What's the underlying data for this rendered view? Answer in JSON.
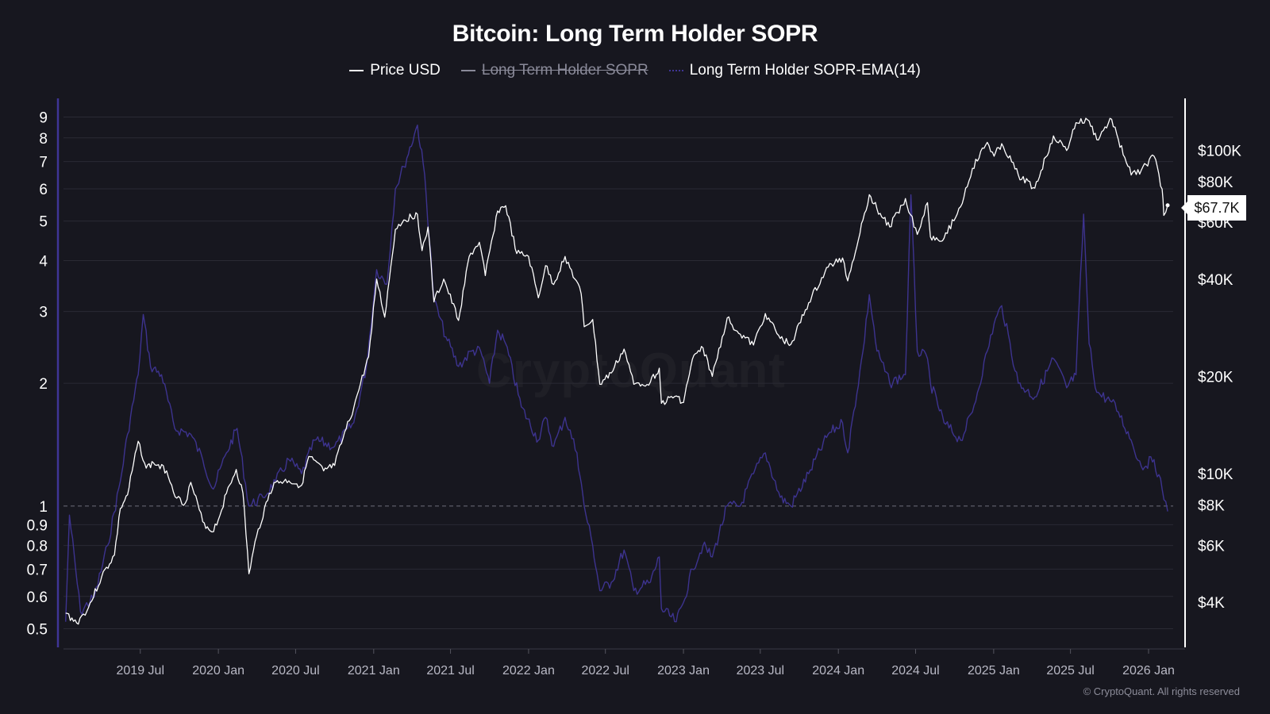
{
  "chart_data": {
    "type": "line",
    "title": "Bitcoin: Long Term Holder SOPR",
    "legend": {
      "placement": "top-center",
      "entries": [
        {
          "name": "Price USD",
          "enabled": true,
          "color": "#ffffff"
        },
        {
          "name": "Long Term Holder SOPR",
          "enabled": false,
          "color": "#ffffff"
        },
        {
          "name": "Long Term Holder SOPR-EMA(14)",
          "enabled": true,
          "color": "#3f3596"
        }
      ]
    },
    "x_axis": {
      "type": "date",
      "range": [
        "2019-01-01",
        "2026-02-28"
      ],
      "tick_labels": [
        "2019 Jul",
        "2020 Jan",
        "2020 Jul",
        "2021 Jan",
        "2021 Jul",
        "2022 Jan",
        "2022 Jul",
        "2023 Jan",
        "2023 Jul",
        "2024 Jan",
        "2024 Jul",
        "2025 Jan",
        "2025 Jul",
        "2026 Jan"
      ],
      "tick_dates": [
        "2019-07-01",
        "2020-01-01",
        "2020-07-01",
        "2021-01-01",
        "2021-07-01",
        "2022-01-01",
        "2022-07-01",
        "2023-01-01",
        "2023-07-01",
        "2024-01-01",
        "2024-07-01",
        "2025-01-01",
        "2025-07-01",
        "2026-01-01"
      ]
    },
    "y_left": {
      "scale": "log",
      "range": [
        0.45,
        10.0
      ],
      "tick_labels": [
        "0.5",
        "0.6",
        "0.7",
        "0.8",
        "0.9",
        "1",
        "2",
        "3",
        "4",
        "5",
        "6",
        "7",
        "8",
        "9"
      ],
      "tick_values": [
        0.5,
        0.6,
        0.7,
        0.8,
        0.9,
        1,
        2,
        3,
        4,
        5,
        6,
        7,
        8,
        9
      ],
      "reference_line": 1
    },
    "y_right": {
      "scale": "log",
      "range": [
        2900,
        145000
      ],
      "tick_labels": [
        "$4K",
        "$6K",
        "$8K",
        "$10K",
        "$20K",
        "$40K",
        "$60K",
        "$80K",
        "$100K"
      ],
      "tick_values": [
        4000,
        6000,
        8000,
        10000,
        20000,
        40000,
        60000,
        80000,
        100000
      ],
      "current_value_label": "$67.7K"
    },
    "grid": true,
    "series": [
      {
        "name": "Price USD",
        "axis": "right",
        "points": [
          [
            "2019-01-06",
            3700
          ],
          [
            "2019-02-01",
            3450
          ],
          [
            "2019-03-01",
            3850
          ],
          [
            "2019-04-01",
            4800
          ],
          [
            "2019-05-01",
            5600
          ],
          [
            "2019-05-15",
            7800
          ],
          [
            "2019-06-01",
            8600
          ],
          [
            "2019-06-26",
            12600
          ],
          [
            "2019-07-15",
            10400
          ],
          [
            "2019-08-01",
            10800
          ],
          [
            "2019-09-01",
            10200
          ],
          [
            "2019-09-25",
            8400
          ],
          [
            "2019-10-15",
            8100
          ],
          [
            "2019-10-28",
            9400
          ],
          [
            "2019-11-25",
            7100
          ],
          [
            "2019-12-17",
            6600
          ],
          [
            "2020-01-01",
            7200
          ],
          [
            "2020-01-20",
            8700
          ],
          [
            "2020-02-12",
            10300
          ],
          [
            "2020-02-28",
            8700
          ],
          [
            "2020-03-13",
            4900
          ],
          [
            "2020-03-31",
            6400
          ],
          [
            "2020-04-30",
            8700
          ],
          [
            "2020-05-15",
            9400
          ],
          [
            "2020-06-15",
            9500
          ],
          [
            "2020-07-15",
            9200
          ],
          [
            "2020-08-01",
            11300
          ],
          [
            "2020-09-05",
            10200
          ],
          [
            "2020-10-01",
            10600
          ],
          [
            "2020-10-21",
            12900
          ],
          [
            "2020-11-15",
            16000
          ],
          [
            "2020-12-01",
            19000
          ],
          [
            "2020-12-20",
            23000
          ],
          [
            "2021-01-08",
            40000
          ],
          [
            "2021-01-27",
            30500
          ],
          [
            "2021-02-21",
            57000
          ],
          [
            "2021-03-13",
            61000
          ],
          [
            "2021-04-14",
            63500
          ],
          [
            "2021-04-25",
            49000
          ],
          [
            "2021-05-09",
            58000
          ],
          [
            "2021-05-23",
            34000
          ],
          [
            "2021-06-15",
            40000
          ],
          [
            "2021-07-20",
            29800
          ],
          [
            "2021-08-14",
            47000
          ],
          [
            "2021-09-07",
            52000
          ],
          [
            "2021-09-21",
            41000
          ],
          [
            "2021-10-20",
            65000
          ],
          [
            "2021-11-08",
            67500
          ],
          [
            "2021-12-04",
            48000
          ],
          [
            "2022-01-01",
            47000
          ],
          [
            "2022-01-24",
            35000
          ],
          [
            "2022-02-10",
            44000
          ],
          [
            "2022-03-01",
            38500
          ],
          [
            "2022-03-28",
            47000
          ],
          [
            "2022-05-05",
            36000
          ],
          [
            "2022-05-12",
            28500
          ],
          [
            "2022-06-01",
            30000
          ],
          [
            "2022-06-18",
            18900
          ],
          [
            "2022-07-15",
            20500
          ],
          [
            "2022-08-14",
            24300
          ],
          [
            "2022-09-06",
            18900
          ],
          [
            "2022-10-15",
            19200
          ],
          [
            "2022-11-05",
            21200
          ],
          [
            "2022-11-10",
            16500
          ],
          [
            "2022-12-15",
            17400
          ],
          [
            "2023-01-01",
            16600
          ],
          [
            "2023-01-22",
            22600
          ],
          [
            "2023-02-16",
            24500
          ],
          [
            "2023-03-10",
            20000
          ],
          [
            "2023-04-14",
            30300
          ],
          [
            "2023-05-15",
            27000
          ],
          [
            "2023-06-15",
            25000
          ],
          [
            "2023-07-13",
            31300
          ],
          [
            "2023-08-17",
            26200
          ],
          [
            "2023-09-11",
            25100
          ],
          [
            "2023-10-23",
            33800
          ],
          [
            "2023-12-08",
            43600
          ],
          [
            "2024-01-11",
            46500
          ],
          [
            "2024-01-23",
            39500
          ],
          [
            "2024-02-28",
            61000
          ],
          [
            "2024-03-14",
            73000
          ],
          [
            "2024-04-01",
            66000
          ],
          [
            "2024-05-01",
            58000
          ],
          [
            "2024-06-07",
            71000
          ],
          [
            "2024-07-05",
            55000
          ],
          [
            "2024-07-29",
            69000
          ],
          [
            "2024-08-05",
            54000
          ],
          [
            "2024-09-06",
            53500
          ],
          [
            "2024-10-15",
            67000
          ],
          [
            "2024-11-12",
            88000
          ],
          [
            "2024-12-17",
            106000
          ],
          [
            "2025-01-02",
            96000
          ],
          [
            "2025-01-20",
            105000
          ],
          [
            "2025-02-28",
            84000
          ],
          [
            "2025-04-08",
            76500
          ],
          [
            "2025-05-22",
            111000
          ],
          [
            "2025-06-22",
            100000
          ],
          [
            "2025-07-14",
            122000
          ],
          [
            "2025-08-14",
            123500
          ],
          [
            "2025-09-01",
            108000
          ],
          [
            "2025-10-06",
            125000
          ],
          [
            "2025-10-22",
            108000
          ],
          [
            "2025-11-21",
            84000
          ],
          [
            "2025-12-15",
            87000
          ],
          [
            "2026-01-14",
            96000
          ],
          [
            "2026-02-02",
            76000
          ],
          [
            "2026-02-06",
            63000
          ],
          [
            "2026-02-15",
            67700
          ]
        ]
      },
      {
        "name": "Long Term Holder SOPR-EMA(14)",
        "axis": "left",
        "points": [
          [
            "2019-01-06",
            0.52
          ],
          [
            "2019-01-15",
            0.95
          ],
          [
            "2019-02-10",
            0.55
          ],
          [
            "2019-03-15",
            0.6
          ],
          [
            "2019-04-15",
            0.8
          ],
          [
            "2019-05-15",
            1.15
          ],
          [
            "2019-06-01",
            1.5
          ],
          [
            "2019-06-26",
            2.1
          ],
          [
            "2019-07-08",
            2.95
          ],
          [
            "2019-07-25",
            2.2
          ],
          [
            "2019-08-20",
            2.1
          ],
          [
            "2019-09-20",
            1.55
          ],
          [
            "2019-10-28",
            1.5
          ],
          [
            "2019-11-25",
            1.3
          ],
          [
            "2019-12-20",
            1.1
          ],
          [
            "2020-01-20",
            1.35
          ],
          [
            "2020-02-14",
            1.55
          ],
          [
            "2020-03-13",
            1.0
          ],
          [
            "2020-04-15",
            1.05
          ],
          [
            "2020-05-15",
            1.15
          ],
          [
            "2020-06-15",
            1.3
          ],
          [
            "2020-07-15",
            1.2
          ],
          [
            "2020-08-15",
            1.45
          ],
          [
            "2020-10-01",
            1.4
          ],
          [
            "2020-11-15",
            1.6
          ],
          [
            "2020-12-15",
            2.2
          ],
          [
            "2021-01-08",
            3.8
          ],
          [
            "2021-02-01",
            3.5
          ],
          [
            "2021-02-21",
            6.0
          ],
          [
            "2021-03-13",
            6.8
          ],
          [
            "2021-04-14",
            8.6
          ],
          [
            "2021-05-01",
            6.5
          ],
          [
            "2021-05-23",
            3.2
          ],
          [
            "2021-06-20",
            2.6
          ],
          [
            "2021-07-20",
            2.2
          ],
          [
            "2021-08-20",
            2.4
          ],
          [
            "2021-09-10",
            2.4
          ],
          [
            "2021-10-01",
            2.0
          ],
          [
            "2021-10-20",
            2.7
          ],
          [
            "2021-11-08",
            2.5
          ],
          [
            "2021-12-15",
            1.75
          ],
          [
            "2022-01-24",
            1.45
          ],
          [
            "2022-02-10",
            1.65
          ],
          [
            "2022-03-01",
            1.4
          ],
          [
            "2022-03-28",
            1.65
          ],
          [
            "2022-04-25",
            1.35
          ],
          [
            "2022-05-12",
            1.0
          ],
          [
            "2022-06-01",
            0.8
          ],
          [
            "2022-06-18",
            0.62
          ],
          [
            "2022-07-15",
            0.65
          ],
          [
            "2022-08-14",
            0.78
          ],
          [
            "2022-09-06",
            0.62
          ],
          [
            "2022-10-15",
            0.65
          ],
          [
            "2022-11-05",
            0.75
          ],
          [
            "2022-11-10",
            0.56
          ],
          [
            "2022-12-15",
            0.52
          ],
          [
            "2023-01-01",
            0.58
          ],
          [
            "2023-01-22",
            0.7
          ],
          [
            "2023-02-16",
            0.8
          ],
          [
            "2023-03-10",
            0.75
          ],
          [
            "2023-04-14",
            1.0
          ],
          [
            "2023-05-15",
            1.0
          ],
          [
            "2023-06-15",
            1.2
          ],
          [
            "2023-07-13",
            1.35
          ],
          [
            "2023-08-17",
            1.05
          ],
          [
            "2023-09-11",
            1.0
          ],
          [
            "2023-10-23",
            1.2
          ],
          [
            "2023-12-08",
            1.5
          ],
          [
            "2024-01-11",
            1.6
          ],
          [
            "2024-01-23",
            1.35
          ],
          [
            "2024-02-28",
            2.4
          ],
          [
            "2024-03-14",
            3.3
          ],
          [
            "2024-04-01",
            2.4
          ],
          [
            "2024-05-01",
            2.0
          ],
          [
            "2024-06-07",
            2.1
          ],
          [
            "2024-06-20",
            5.8
          ],
          [
            "2024-07-05",
            2.4
          ],
          [
            "2024-07-29",
            2.3
          ],
          [
            "2024-08-05",
            2.0
          ],
          [
            "2024-09-06",
            1.6
          ],
          [
            "2024-10-15",
            1.45
          ],
          [
            "2024-11-12",
            1.7
          ],
          [
            "2024-12-17",
            2.4
          ],
          [
            "2025-01-02",
            2.8
          ],
          [
            "2025-01-20",
            3.1
          ],
          [
            "2025-02-28",
            2.0
          ],
          [
            "2025-04-08",
            1.85
          ],
          [
            "2025-05-22",
            2.3
          ],
          [
            "2025-06-22",
            1.95
          ],
          [
            "2025-07-14",
            2.1
          ],
          [
            "2025-08-01",
            5.2
          ],
          [
            "2025-08-14",
            2.5
          ],
          [
            "2025-09-01",
            1.9
          ],
          [
            "2025-10-06",
            1.8
          ],
          [
            "2025-10-22",
            1.7
          ],
          [
            "2025-11-21",
            1.45
          ],
          [
            "2025-12-15",
            1.25
          ],
          [
            "2026-01-14",
            1.3
          ],
          [
            "2026-02-02",
            1.1
          ],
          [
            "2026-02-15",
            0.97
          ]
        ]
      }
    ],
    "watermark": "CryptoQuant",
    "copyright": "© CryptoQuant. All rights reserved"
  }
}
